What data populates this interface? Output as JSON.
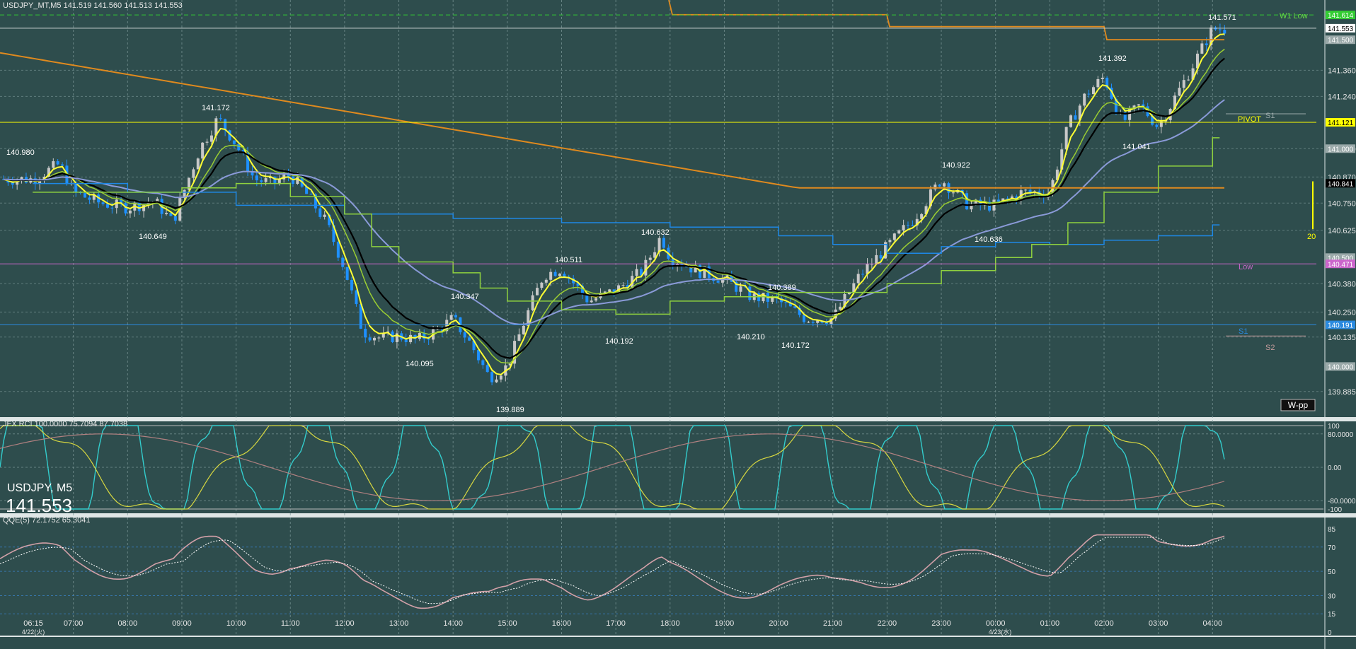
{
  "header": {
    "main": "USDJPY_MT,M5  141.519 141.560 141.513 141.553",
    "rci": "JFX RCI 100.0000 75.7094 87.7038",
    "qqe": "QQE(5) 72.1752 65.3041"
  },
  "symbol_box": {
    "name": "USDJPY, M5",
    "price": "141.553"
  },
  "colors": {
    "bg": "#2e4d4d",
    "grid": "#7f9a9a",
    "bull": "#c8c8c8",
    "bear": "#1e90ff",
    "ma_black": "#000000",
    "ma_yellow": "#ffff33",
    "ma_green": "#9acd32",
    "ma_orange": "#e08a1e",
    "ma_lavender": "#8a9ad8",
    "kijun_blue": "#1e88e5",
    "kumo_green": "#8fd13f",
    "rci_cyan": "#33cccc",
    "rci_yellow": "#d8d840",
    "rci_rose": "#b08080",
    "qqe_rose": "#d2a0a8",
    "pivot": "#ffff00",
    "low_magenta": "#cc66cc",
    "s_blue": "#2a8adf",
    "w1low": "#33cc33"
  },
  "price_axis": {
    "labels": [
      "141.360",
      "141.240",
      "141.000",
      "140.870",
      "140.750",
      "140.625",
      "140.380",
      "140.250",
      "140.135",
      "139.885"
    ],
    "tags": [
      {
        "text": "141.614",
        "role": "w1low"
      },
      {
        "text": "141.553",
        "role": "current"
      },
      {
        "text": "141.500",
        "role": "orange"
      },
      {
        "text": "141.121",
        "role": "pivot"
      },
      {
        "text": "141.000",
        "role": "gray"
      },
      {
        "text": "140.841",
        "role": "black"
      },
      {
        "text": "140.500",
        "role": "gray"
      },
      {
        "text": "140.471",
        "role": "low"
      },
      {
        "text": "140.191",
        "role": "s1"
      },
      {
        "text": "140.000",
        "role": "gray"
      }
    ]
  },
  "rci_axis": [
    "100",
    "80.0000",
    "0.00",
    "-80.0000",
    "-100"
  ],
  "qqe_axis": [
    "85",
    "70",
    "50",
    "30",
    "15",
    "0"
  ],
  "time_axis": [
    "06:15",
    "07:00",
    "08:00",
    "09:00",
    "10:00",
    "11:00",
    "12:00",
    "13:00",
    "14:00",
    "15:00",
    "16:00",
    "17:00",
    "18:00",
    "19:00",
    "20:00",
    "21:00",
    "22:00",
    "23:00",
    "00:00",
    "01:00",
    "02:00",
    "03:00",
    "04:00"
  ],
  "date_labels": [
    "4/22(火)",
    "4/23(水)"
  ],
  "annotations": [
    "140.980",
    "141.172",
    "140.649",
    "140.347",
    "140.095",
    "139.889",
    "140.511",
    "140.632",
    "140.192",
    "140.389",
    "140.210",
    "140.172",
    "140.922",
    "140.636",
    "141.392",
    "141.041",
    "141.571"
  ],
  "level_labels": {
    "w1low": "W1 Low",
    "pivot": "PIVOT",
    "s1_upper": "S1",
    "low": "Low",
    "s1": "S1",
    "s2": "S2",
    "wpp": "W-pp",
    "vol": "20"
  },
  "chart_data": {
    "type": "candlestick",
    "symbol": "USDJPY_MT",
    "timeframe": "M5",
    "ylim": [
      139.8,
      141.65
    ],
    "pivots": [
      141.614,
      141.121,
      140.471,
      140.191
    ],
    "price_path": [
      [
        "06:15",
        140.86
      ],
      [
        "06:45",
        140.93
      ],
      [
        "07:00",
        140.8
      ],
      [
        "07:30",
        140.75
      ],
      [
        "08:00",
        140.73
      ],
      [
        "08:30",
        140.76
      ],
      [
        "08:50",
        140.66
      ],
      [
        "09:00",
        140.78
      ],
      [
        "09:20",
        141.0
      ],
      [
        "09:40",
        141.14
      ],
      [
        "10:00",
        141.02
      ],
      [
        "10:20",
        140.86
      ],
      [
        "10:40",
        140.84
      ],
      [
        "11:00",
        140.88
      ],
      [
        "11:20",
        140.78
      ],
      [
        "11:40",
        140.66
      ],
      [
        "12:00",
        140.45
      ],
      [
        "12:20",
        140.16
      ],
      [
        "12:40",
        140.13
      ],
      [
        "13:00",
        140.14
      ],
      [
        "13:20",
        140.12
      ],
      [
        "13:40",
        140.16
      ],
      [
        "14:00",
        140.22
      ],
      [
        "14:20",
        140.1
      ],
      [
        "14:40",
        139.95
      ],
      [
        "15:00",
        140.0
      ],
      [
        "15:20",
        140.22
      ],
      [
        "15:40",
        140.42
      ],
      [
        "16:00",
        140.45
      ],
      [
        "16:30",
        140.3
      ],
      [
        "17:00",
        140.35
      ],
      [
        "17:30",
        140.44
      ],
      [
        "17:50",
        140.6
      ],
      [
        "18:00",
        140.5
      ],
      [
        "18:30",
        140.44
      ],
      [
        "19:00",
        140.4
      ],
      [
        "19:30",
        140.32
      ],
      [
        "20:00",
        140.3
      ],
      [
        "20:30",
        140.22
      ],
      [
        "21:00",
        140.22
      ],
      [
        "21:30",
        140.42
      ],
      [
        "22:00",
        140.55
      ],
      [
        "22:30",
        140.68
      ],
      [
        "23:00",
        140.86
      ],
      [
        "23:30",
        140.74
      ],
      [
        "00:00",
        140.74
      ],
      [
        "00:30",
        140.8
      ],
      [
        "01:00",
        140.8
      ],
      [
        "01:20",
        141.1
      ],
      [
        "01:40",
        141.25
      ],
      [
        "02:00",
        141.33
      ],
      [
        "02:20",
        141.12
      ],
      [
        "02:40",
        141.2
      ],
      [
        "03:00",
        141.1
      ],
      [
        "03:30",
        141.32
      ],
      [
        "04:00",
        141.55
      ]
    ]
  }
}
